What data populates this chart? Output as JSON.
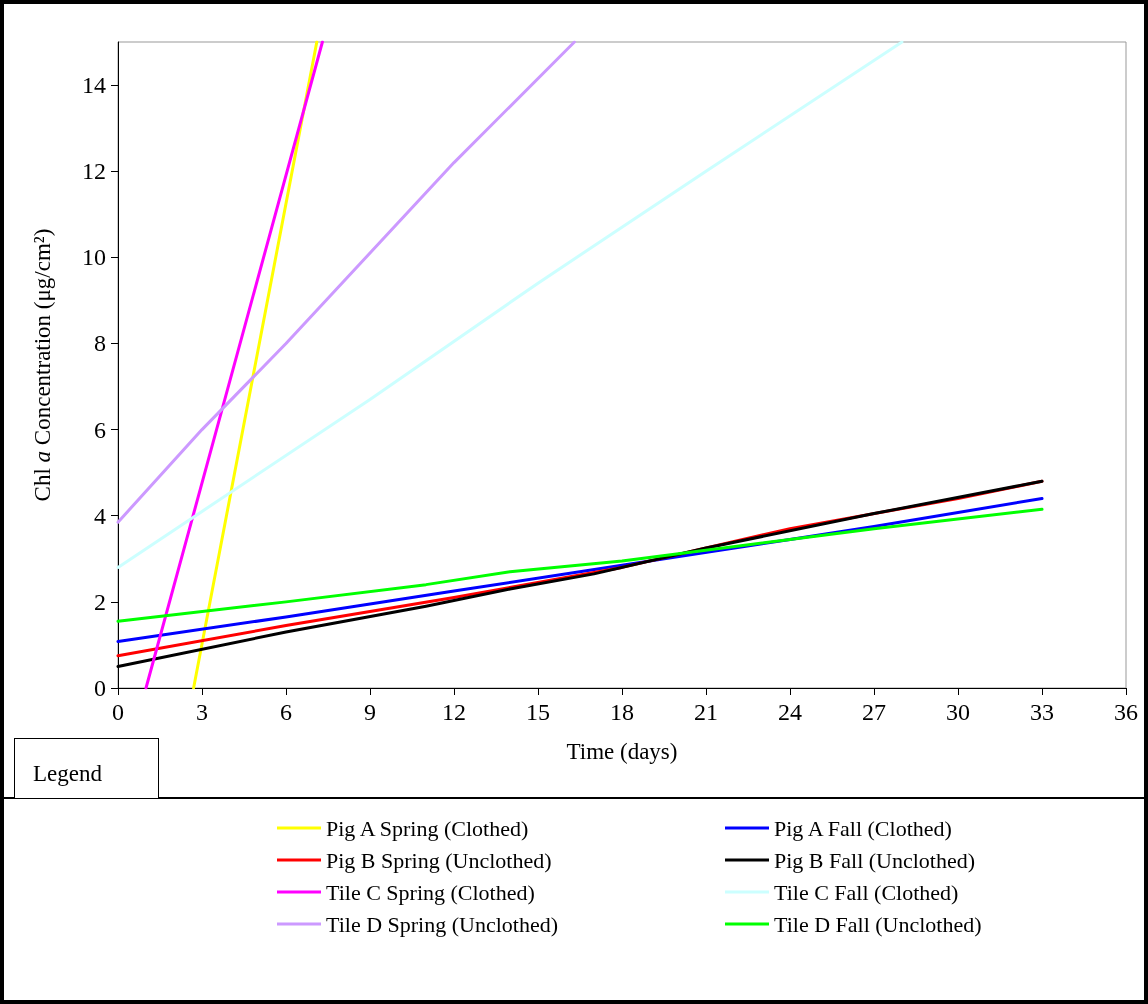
{
  "chart_data": {
    "type": "line",
    "xlabel": "Time (days)",
    "ylabel": "Chl $_{}$a Concentration (μg/cm²)",
    "legend_title": "Legend",
    "xlim": [
      0,
      36
    ],
    "xticks": [
      0,
      3,
      6,
      9,
      12,
      15,
      18,
      21,
      24,
      27,
      30,
      33,
      36
    ],
    "ylim": [
      0,
      15
    ],
    "yticks": [
      0,
      2,
      4,
      6,
      8,
      10,
      12,
      14
    ],
    "grid": false,
    "legend": "bottom",
    "marker": "none",
    "line_style": "solid",
    "series": [
      {
        "name": "Pig A Spring (Clothed)",
        "color": "#ffff00",
        "x": [
          2.7,
          7.1
        ],
        "values": [
          0,
          15
        ]
      },
      {
        "name": "Pig A Fall (Clothed)",
        "color": "#0000ff",
        "x": [
          0,
          6,
          12,
          18,
          24,
          27,
          33
        ],
        "values": [
          1.08,
          1.65,
          2.25,
          2.85,
          3.45,
          3.75,
          4.4
        ]
      },
      {
        "name": "Pig B Spring (Unclothed)",
        "color": "#ff0000",
        "x": [
          0,
          6,
          12,
          18,
          24,
          30,
          33
        ],
        "values": [
          0.75,
          1.45,
          2.1,
          2.8,
          3.7,
          4.4,
          4.8
        ]
      },
      {
        "name": "Pig B Fall (Unclothed)",
        "color": "#000000",
        "x": [
          0,
          6,
          11,
          14,
          17,
          21,
          27,
          33
        ],
        "values": [
          0.5,
          1.3,
          1.9,
          2.3,
          2.65,
          3.25,
          4.05,
          4.8
        ]
      },
      {
        "name": "Tile C Spring (Clothed)",
        "color": "#ff00ff",
        "x": [
          1,
          7.3
        ],
        "values": [
          0,
          15
        ]
      },
      {
        "name": "Tile C Fall (Clothed)",
        "color": "#ccffff",
        "x": [
          0,
          3,
          9,
          15,
          21,
          28
        ],
        "values": [
          2.8,
          4.1,
          6.7,
          9.4,
          12,
          15
        ]
      },
      {
        "name": "Tile D Spring (Unclothed)",
        "color": "#cc99ff",
        "x": [
          0,
          3,
          6,
          9,
          12,
          16.3
        ],
        "values": [
          3.85,
          6,
          8,
          10.1,
          12.2,
          15
        ]
      },
      {
        "name": "Tile D Fall (Unclothed)",
        "color": "#00ff00",
        "x": [
          0,
          6,
          11,
          14,
          18,
          24,
          27,
          33
        ],
        "values": [
          1.55,
          2,
          2.4,
          2.7,
          2.95,
          3.45,
          3.7,
          4.15
        ]
      }
    ]
  }
}
